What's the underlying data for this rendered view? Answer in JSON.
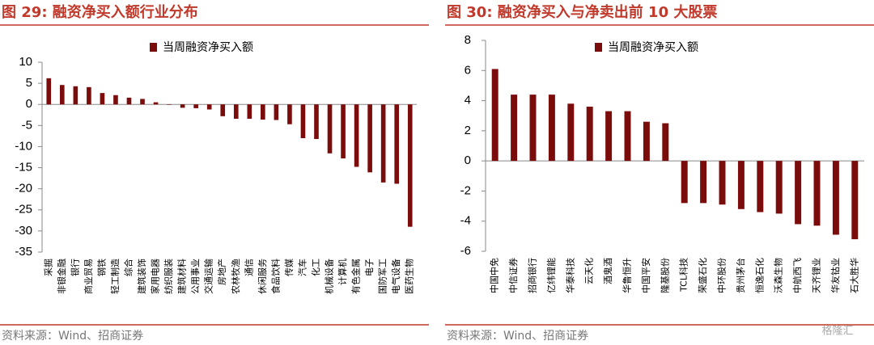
{
  "chart_data": [
    {
      "type": "bar",
      "title": "图 29:  融资净买入额行业分布",
      "categories": [
        "采掘",
        "非银金融",
        "银行",
        "商业贸易",
        "钢铁",
        "轻工制造",
        "综合",
        "建筑装饰",
        "家用电器",
        "纺织服装",
        "建筑材料",
        "公用事业",
        "交通运输",
        "房地产",
        "农林牧渔",
        "通信",
        "休闲服务",
        "食品饮料",
        "传媒",
        "汽车",
        "化工",
        "机械设备",
        "计算机",
        "有色金属",
        "电子",
        "国防军工",
        "电气设备",
        "医药生物"
      ],
      "series": [
        {
          "name": "当周融资净买入额",
          "color": "#7b0c0c",
          "values": [
            6.2,
            4.6,
            4.3,
            4.1,
            2.7,
            2.2,
            1.6,
            1.3,
            0.5,
            -0.1,
            -0.8,
            -0.9,
            -1.2,
            -2.8,
            -3.4,
            -3.4,
            -3.6,
            -3.7,
            -4.7,
            -8.0,
            -8.2,
            -11.6,
            -12.8,
            -14.8,
            -16.1,
            -18.5,
            -18.8,
            -29.0
          ]
        }
      ],
      "ylim": [
        -35,
        10
      ],
      "yticks": [
        -35,
        -30,
        -25,
        -20,
        -15,
        -10,
        -5,
        0,
        5,
        10
      ],
      "source": "资料来源：Wind、招商证券"
    },
    {
      "type": "bar",
      "title": "图 30:  融资净买入与净卖出前 10 大股票",
      "categories": [
        "中国中免",
        "中信证券",
        "招商银行",
        "亿纬锂能",
        "华泰科技",
        "云天化",
        "酒鬼酒",
        "华鲁恒升",
        "中国平安",
        "隆基股份",
        "TCL科技",
        "荣盛石化",
        "中环股份",
        "贵州茅台",
        "恒逸石化",
        "沃森生物",
        "中航西飞",
        "天齐锂业",
        "华友钴业",
        "石大胜华"
      ],
      "series": [
        {
          "name": "当周融资净买入额",
          "color": "#7b0c0c",
          "values": [
            6.1,
            4.4,
            4.4,
            4.4,
            3.8,
            3.6,
            3.3,
            3.3,
            2.6,
            2.5,
            -2.8,
            -2.8,
            -2.9,
            -3.2,
            -3.4,
            -3.5,
            -4.2,
            -4.3,
            -4.9,
            -5.2
          ]
        }
      ],
      "ylim": [
        -6,
        8
      ],
      "yticks": [
        -6,
        -4,
        -2,
        0,
        2,
        4,
        6,
        8
      ],
      "source": "资料来源：Wind、招商证券"
    }
  ],
  "watermark": "格隆汇"
}
